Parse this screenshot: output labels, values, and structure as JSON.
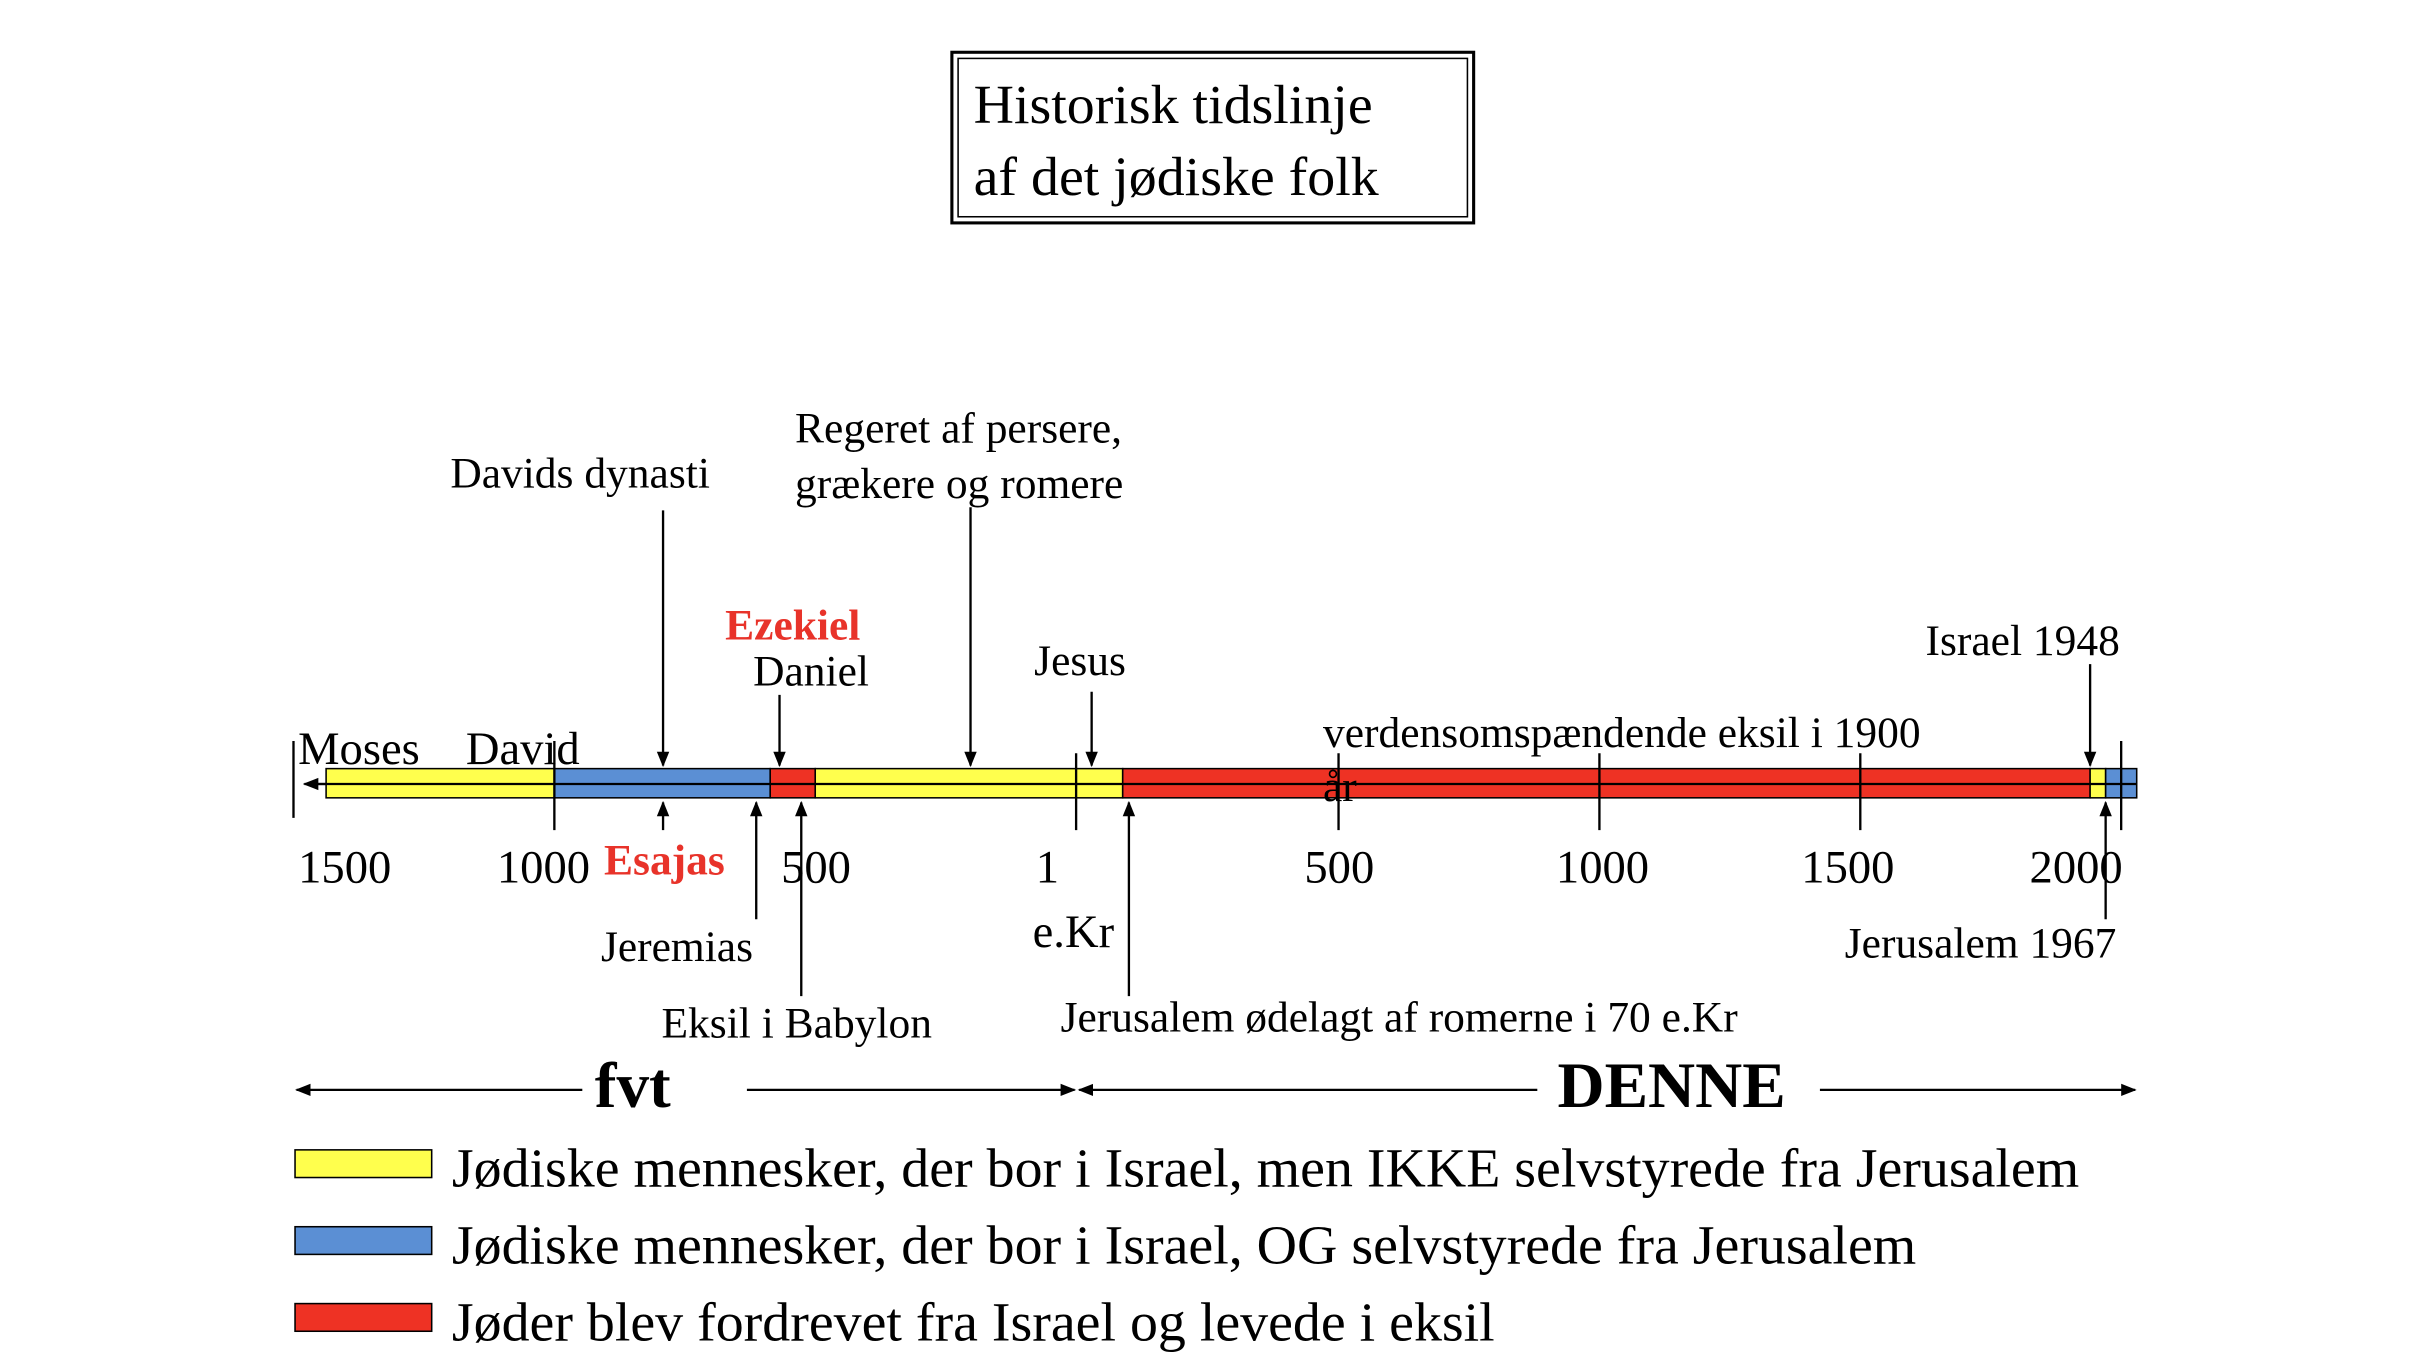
{
  "header": {
    "title_lines": [
      "Historisk tidslinje",
      "af det jødiske folk"
    ]
  },
  "timeline": {
    "labels_above": {
      "moses": "Moses",
      "david": "David",
      "davids_dynasti": "Davids dynasti",
      "regeret": [
        "Regeret af persere,",
        "grækere og romere"
      ],
      "ezekiel": "Ezekiel",
      "daniel": "Daniel",
      "jesus": "Jesus",
      "israel_1948": "Israel 1948",
      "verdens": "verdensomspændende eksil i 1900",
      "aar": "år"
    },
    "ticks": [
      "1500",
      "1000",
      "500",
      "1",
      "500",
      "1000",
      "1500",
      "2000"
    ],
    "era_note": "e.Kr",
    "labels_below": {
      "esajas": "Esajas",
      "jeremias": "Jeremias",
      "eksil_babylon": "Eksil i Babylon",
      "jerusalem_70": "Jerusalem ødelagt af romerne i 70 e.Kr",
      "jerusalem_1967": "Jerusalem 1967"
    },
    "eras": [
      "fvt",
      "DENNE"
    ]
  },
  "legend": [
    {
      "label": "Jødiske mennesker, der bor i Israel, men IKKE selvstyrede fra Jerusalem",
      "color": "#ffff4d"
    },
    {
      "label": "Jødiske mennesker, der bor i Israel, OG selvstyrede fra Jerusalem",
      "color": "#5b8fd4"
    },
    {
      "label": "Jøder blev fordrevet fra Israel og levede i eksil",
      "color": "#ee3224"
    }
  ]
}
